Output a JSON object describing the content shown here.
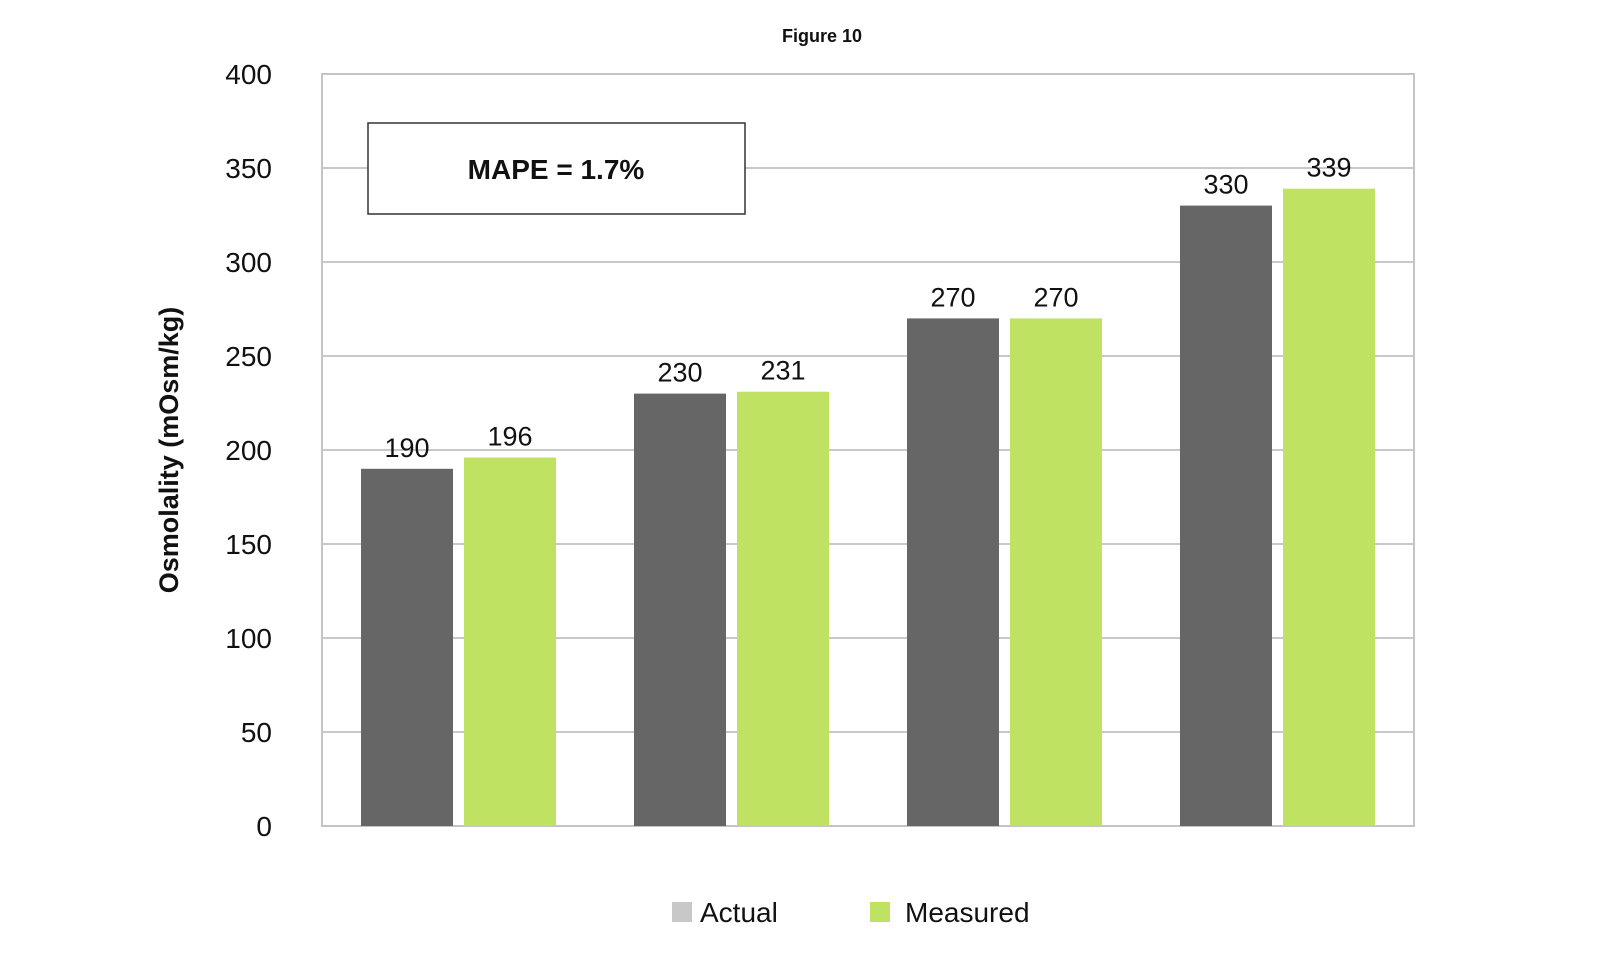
{
  "chart_data": {
    "type": "bar",
    "title": "Figure 10",
    "xlabel": "",
    "ylabel": "Osmolality (mOsm/kg)",
    "ylim": [
      0,
      400
    ],
    "yticks": [
      "0",
      "50",
      "100",
      "150",
      "200",
      "250",
      "300",
      "350",
      "400"
    ],
    "categories": [
      "",
      "",
      "",
      ""
    ],
    "series": [
      {
        "name": "Actual",
        "values": [
          190,
          230,
          270,
          330
        ],
        "color": "#666666",
        "legend_color": "#c8c8c8"
      },
      {
        "name": "Measured",
        "values": [
          196,
          231,
          270,
          339
        ],
        "color": "#bfe263",
        "legend_color": "#bfe263"
      }
    ],
    "annotation": "MAPE = 1.7%",
    "grid": true,
    "legend_position": "bottom"
  }
}
